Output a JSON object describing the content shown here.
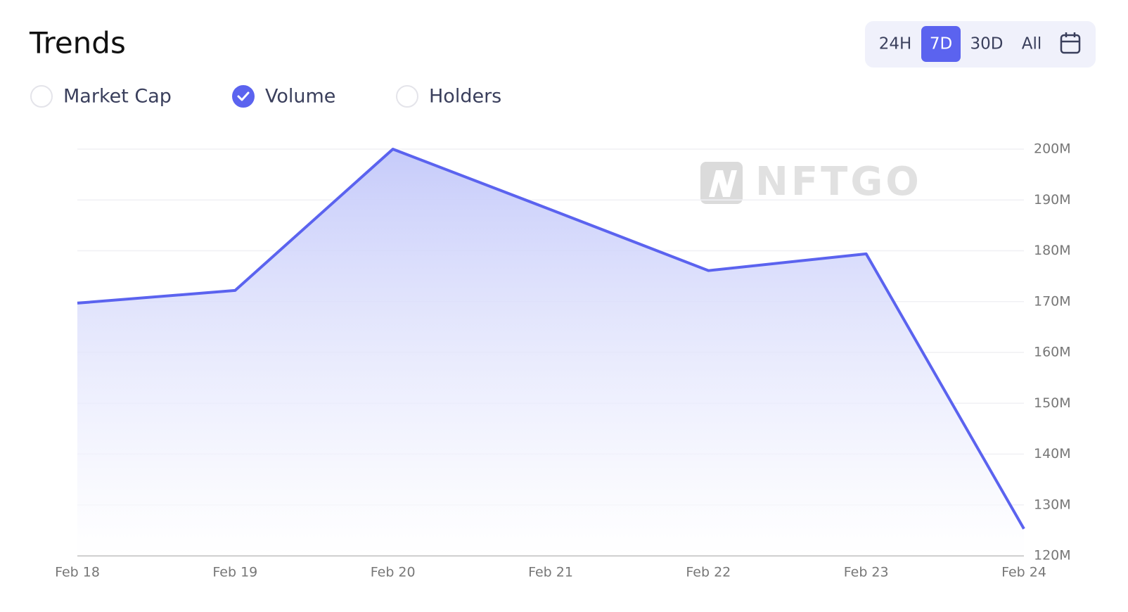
{
  "chart_data": {
    "type": "area",
    "title": "Trends",
    "watermark": "NFTGO",
    "categories": [
      "Feb 18",
      "Feb 19",
      "Feb 20",
      "Feb 21",
      "Feb 22",
      "Feb 23",
      "Feb 24"
    ],
    "values": [
      169700000,
      172200000,
      200000000,
      188100000,
      176100000,
      179400000,
      125300000
    ],
    "color": "#5b63ef",
    "ylim": [
      120000000,
      200000000
    ],
    "yticks": [
      {
        "value": 120000000,
        "label": "120M"
      },
      {
        "value": 130000000,
        "label": "130M"
      },
      {
        "value": 140000000,
        "label": "140M"
      },
      {
        "value": 150000000,
        "label": "150M"
      },
      {
        "value": 160000000,
        "label": "160M"
      },
      {
        "value": 170000000,
        "label": "170M"
      },
      {
        "value": 180000000,
        "label": "180M"
      },
      {
        "value": 190000000,
        "label": "190M"
      },
      {
        "value": 200000000,
        "label": "200M"
      }
    ],
    "grid": true
  },
  "controls": {
    "ranges": [
      "24H",
      "7D",
      "30D",
      "All"
    ],
    "selected_range": 1,
    "metrics": [
      "Market Cap",
      "Volume",
      "Holders"
    ],
    "selected_metric": 1
  }
}
